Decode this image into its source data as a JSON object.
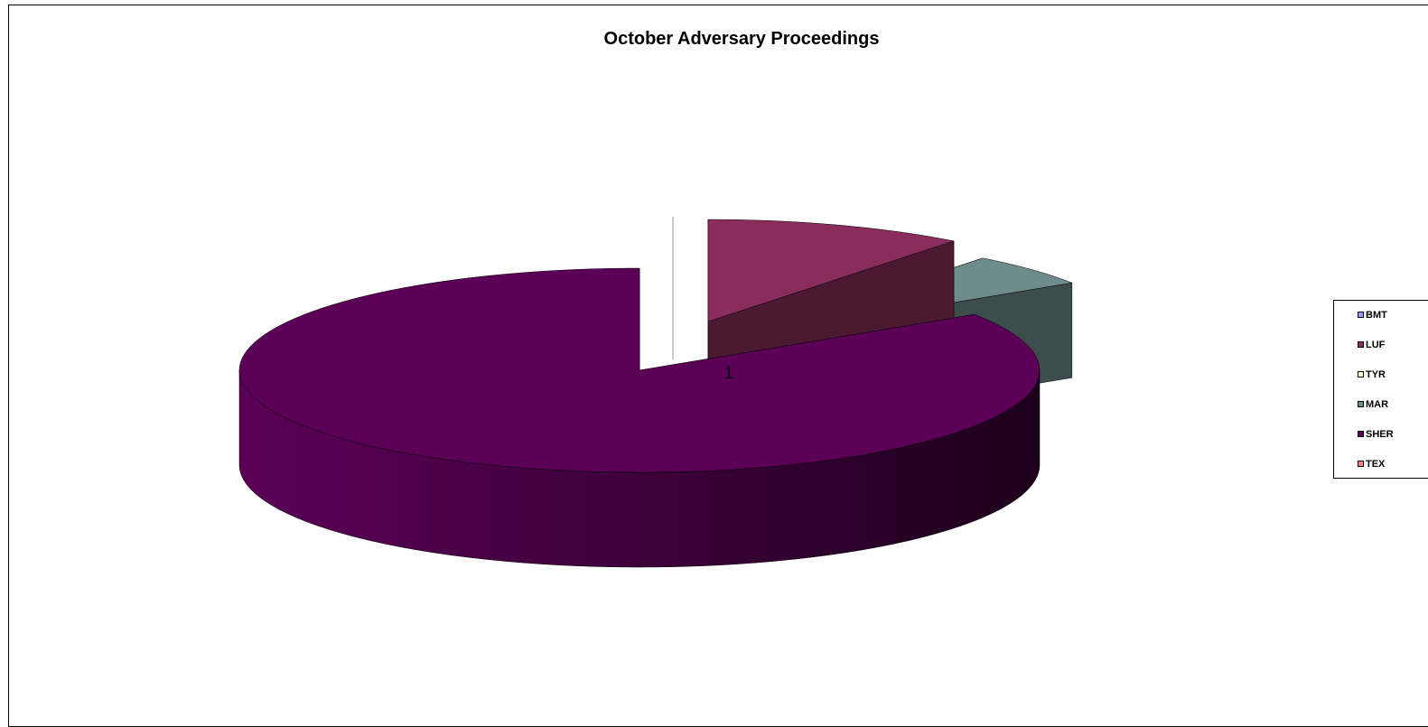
{
  "chart_data": {
    "type": "pie",
    "style": "3d-exploded",
    "title": "October Adversary Proceedings",
    "series_label": "1",
    "legend_position": "right",
    "categories": [
      "BMT",
      "LUF",
      "TYR",
      "MAR",
      "SHER",
      "TEX"
    ],
    "values": [
      0,
      1,
      0,
      0.5,
      8,
      0
    ],
    "colors": [
      "#9999ff",
      "#8b2d5c",
      "#ffffcc",
      "#6e8c8c",
      "#5c0057",
      "#ff8080"
    ]
  }
}
